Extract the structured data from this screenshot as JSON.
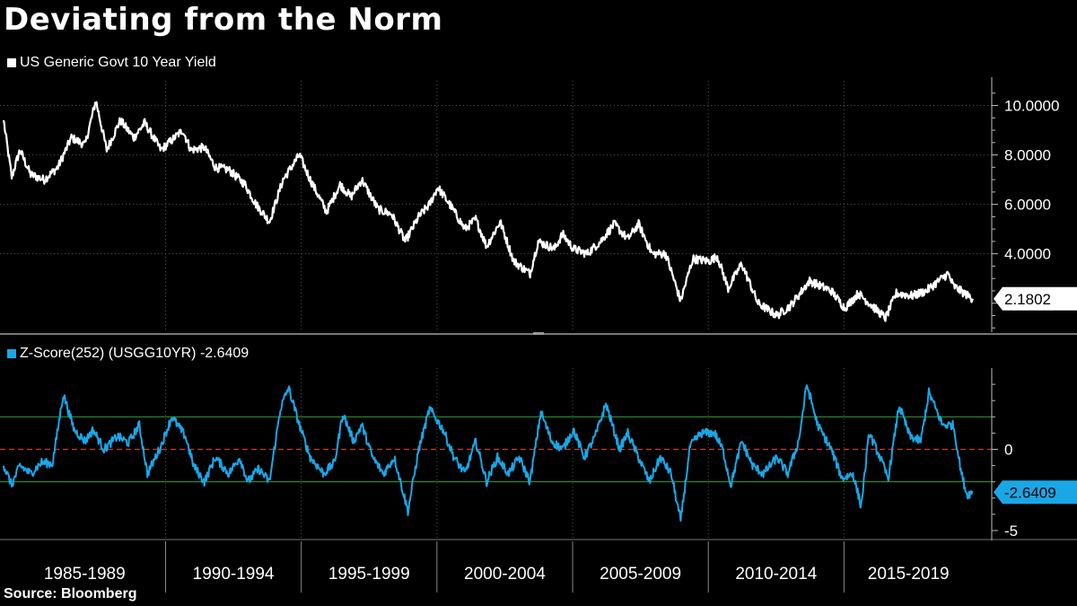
{
  "title": "Deviating from the Norm",
  "source": "Source: Bloomberg",
  "colors": {
    "yield": "#ffffff",
    "zscore": "#1aa7e6",
    "band": "#2fa82f",
    "zero": "#d03a2a",
    "grid": "#555555"
  },
  "chart_data": [
    {
      "type": "line",
      "legend": "US Generic Govt 10 Year Yield",
      "ylim": [
        0.9,
        11.0
      ],
      "yticks": [
        "10.0000",
        "8.0000",
        "6.0000",
        "4.0000"
      ],
      "ytick_values": [
        10,
        8,
        6,
        4
      ],
      "last_value_label": "2.1802",
      "last_value": 2.1802,
      "x_range": [
        1984.0,
        2019.72
      ],
      "anchors": [
        [
          1984.0,
          9.4
        ],
        [
          1984.3,
          7.1
        ],
        [
          1984.6,
          8.2
        ],
        [
          1985.0,
          7.2
        ],
        [
          1985.5,
          7.0
        ],
        [
          1986.0,
          7.5
        ],
        [
          1986.5,
          8.7
        ],
        [
          1987.0,
          8.4
        ],
        [
          1987.4,
          10.2
        ],
        [
          1987.8,
          8.2
        ],
        [
          1988.3,
          9.4
        ],
        [
          1988.8,
          8.7
        ],
        [
          1989.2,
          9.3
        ],
        [
          1989.8,
          8.2
        ],
        [
          1990.3,
          8.7
        ],
        [
          1990.6,
          9.0
        ],
        [
          1990.9,
          8.2
        ],
        [
          1991.4,
          8.3
        ],
        [
          1991.8,
          7.5
        ],
        [
          1992.3,
          7.4
        ],
        [
          1992.9,
          6.8
        ],
        [
          1993.3,
          6.0
        ],
        [
          1993.8,
          5.3
        ],
        [
          1994.3,
          7.0
        ],
        [
          1994.9,
          8.0
        ],
        [
          1995.3,
          7.0
        ],
        [
          1995.9,
          5.7
        ],
        [
          1996.4,
          6.8
        ],
        [
          1996.8,
          6.3
        ],
        [
          1997.2,
          7.0
        ],
        [
          1997.8,
          5.8
        ],
        [
          1998.3,
          5.6
        ],
        [
          1998.8,
          4.5
        ],
        [
          1999.3,
          5.5
        ],
        [
          1999.7,
          6.0
        ],
        [
          2000.0,
          6.7
        ],
        [
          2000.5,
          5.9
        ],
        [
          2001.0,
          5.0
        ],
        [
          2001.4,
          5.4
        ],
        [
          2001.8,
          4.3
        ],
        [
          2002.3,
          5.3
        ],
        [
          2002.8,
          3.7
        ],
        [
          2003.4,
          3.2
        ],
        [
          2003.7,
          4.5
        ],
        [
          2004.3,
          4.2
        ],
        [
          2004.6,
          4.8
        ],
        [
          2005.0,
          4.2
        ],
        [
          2005.5,
          4.0
        ],
        [
          2006.0,
          4.5
        ],
        [
          2006.5,
          5.2
        ],
        [
          2007.0,
          4.6
        ],
        [
          2007.4,
          5.2
        ],
        [
          2007.9,
          4.0
        ],
        [
          2008.4,
          4.0
        ],
        [
          2008.95,
          2.1
        ],
        [
          2009.4,
          3.8
        ],
        [
          2010.0,
          3.7
        ],
        [
          2010.3,
          3.9
        ],
        [
          2010.7,
          2.6
        ],
        [
          2011.2,
          3.6
        ],
        [
          2011.8,
          2.0
        ],
        [
          2012.5,
          1.5
        ],
        [
          2013.0,
          1.9
        ],
        [
          2013.7,
          2.9
        ],
        [
          2014.5,
          2.5
        ],
        [
          2015.0,
          1.8
        ],
        [
          2015.5,
          2.4
        ],
        [
          2016.0,
          1.9
        ],
        [
          2016.5,
          1.4
        ],
        [
          2016.9,
          2.4
        ],
        [
          2017.5,
          2.3
        ],
        [
          2018.0,
          2.5
        ],
        [
          2018.8,
          3.2
        ],
        [
          2019.0,
          2.7
        ],
        [
          2019.4,
          2.4
        ],
        [
          2019.72,
          2.18
        ]
      ]
    },
    {
      "type": "line",
      "legend": "Z-Score(252) (USGG10YR) -2.6409",
      "ylim": [
        -5.5,
        5.0
      ],
      "yticks": [
        "0",
        "-5"
      ],
      "ytick_values": [
        0,
        -5
      ],
      "bands": [
        2,
        -2
      ],
      "last_value_label": "-2.6409",
      "last_value": -2.6409,
      "x_range": [
        1984.0,
        2019.72
      ],
      "anchors": [
        [
          1984.0,
          -1.0
        ],
        [
          1984.3,
          -2.2
        ],
        [
          1984.6,
          -1.0
        ],
        [
          1985.0,
          -1.5
        ],
        [
          1985.4,
          -0.8
        ],
        [
          1985.8,
          -0.9
        ],
        [
          1986.2,
          3.4
        ],
        [
          1986.6,
          1.2
        ],
        [
          1987.0,
          0.5
        ],
        [
          1987.3,
          1.2
        ],
        [
          1987.7,
          0.0
        ],
        [
          1988.2,
          0.8
        ],
        [
          1988.6,
          0.4
        ],
        [
          1989.0,
          1.5
        ],
        [
          1989.3,
          -1.5
        ],
        [
          1989.8,
          0.2
        ],
        [
          1990.2,
          2.0
        ],
        [
          1990.7,
          0.8
        ],
        [
          1991.0,
          -1.0
        ],
        [
          1991.4,
          -2.0
        ],
        [
          1991.8,
          -0.5
        ],
        [
          1992.3,
          -1.5
        ],
        [
          1992.7,
          -0.5
        ],
        [
          1993.0,
          -2.0
        ],
        [
          1993.4,
          -1.2
        ],
        [
          1993.8,
          -2.0
        ],
        [
          1994.2,
          2.5
        ],
        [
          1994.5,
          3.8
        ],
        [
          1994.9,
          1.5
        ],
        [
          1995.3,
          -0.5
        ],
        [
          1995.8,
          -1.5
        ],
        [
          1996.2,
          -0.8
        ],
        [
          1996.5,
          2.2
        ],
        [
          1996.9,
          0.5
        ],
        [
          1997.2,
          1.5
        ],
        [
          1997.6,
          -0.5
        ],
        [
          1998.0,
          -1.5
        ],
        [
          1998.4,
          -0.5
        ],
        [
          1998.9,
          -3.8
        ],
        [
          1999.3,
          0.0
        ],
        [
          1999.7,
          2.5
        ],
        [
          2000.2,
          1.2
        ],
        [
          2000.6,
          -0.5
        ],
        [
          2001.0,
          -1.5
        ],
        [
          2001.4,
          0.5
        ],
        [
          2001.8,
          -2.0
        ],
        [
          2002.2,
          -0.5
        ],
        [
          2002.6,
          -1.5
        ],
        [
          2003.0,
          -0.5
        ],
        [
          2003.4,
          -2.0
        ],
        [
          2003.8,
          2.3
        ],
        [
          2004.2,
          0.5
        ],
        [
          2004.6,
          0.0
        ],
        [
          2005.0,
          1.2
        ],
        [
          2005.4,
          -0.5
        ],
        [
          2005.8,
          0.8
        ],
        [
          2006.2,
          2.8
        ],
        [
          2006.7,
          0.0
        ],
        [
          2007.0,
          1.0
        ],
        [
          2007.4,
          -0.5
        ],
        [
          2007.8,
          -2.0
        ],
        [
          2008.2,
          -0.5
        ],
        [
          2008.6,
          -1.5
        ],
        [
          2008.95,
          -4.4
        ],
        [
          2009.3,
          0.2
        ],
        [
          2009.7,
          1.0
        ],
        [
          2010.2,
          1.0
        ],
        [
          2010.5,
          0.0
        ],
        [
          2010.8,
          -2.2
        ],
        [
          2011.2,
          0.5
        ],
        [
          2011.6,
          -1.0
        ],
        [
          2012.0,
          -1.5
        ],
        [
          2012.5,
          -0.5
        ],
        [
          2012.9,
          -1.5
        ],
        [
          2013.3,
          0.5
        ],
        [
          2013.6,
          4.0
        ],
        [
          2014.0,
          1.5
        ],
        [
          2014.5,
          0.0
        ],
        [
          2014.9,
          -1.8
        ],
        [
          2015.3,
          -1.5
        ],
        [
          2015.6,
          -3.5
        ],
        [
          2015.9,
          1.0
        ],
        [
          2016.3,
          -0.5
        ],
        [
          2016.6,
          -1.8
        ],
        [
          2017.0,
          2.7
        ],
        [
          2017.4,
          0.8
        ],
        [
          2017.8,
          0.5
        ],
        [
          2018.1,
          3.5
        ],
        [
          2018.6,
          1.5
        ],
        [
          2019.0,
          1.5
        ],
        [
          2019.3,
          -1.5
        ],
        [
          2019.5,
          -2.8
        ],
        [
          2019.72,
          -2.64
        ]
      ]
    }
  ],
  "x_periods": [
    "1985-1989",
    "1990-1994",
    "1995-1999",
    "2000-2004",
    "2005-2009",
    "2010-2014",
    "2015-2019"
  ],
  "x_boundaries": [
    1989.97,
    1994.97,
    1999.97,
    2004.97,
    2009.97,
    2014.97
  ]
}
